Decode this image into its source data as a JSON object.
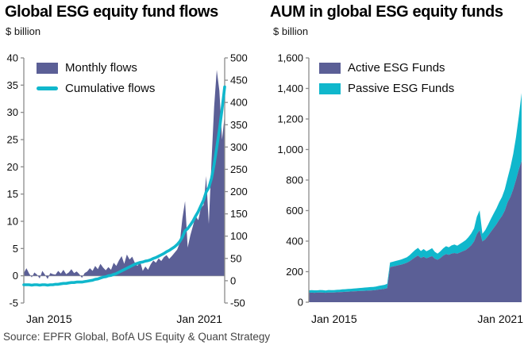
{
  "page": {
    "source_note": "Source: EPFR Global, BofA US Equity & Quant Strategy"
  },
  "colors": {
    "purple": "#5b5f96",
    "cyan": "#10b7cc",
    "axis_line": "#8c8c8c",
    "zero_line": "#9b9b9b",
    "tick_text": "#0c0c0c",
    "source_text": "#454545"
  },
  "chart_data": [
    {
      "id": "flows",
      "type": "area",
      "title": "Global ESG equity fund flows",
      "ylabel": "$ billion",
      "x_start": "Jan 2015",
      "x_end": "May 2021",
      "x_tick_labels": [
        "Jan 2015",
        "Jan 2021"
      ],
      "grid": false,
      "legend_position": "top-left",
      "left_axis": {
        "min": -5,
        "max": 40,
        "ticks": [
          40,
          35,
          30,
          25,
          20,
          15,
          10,
          5,
          0,
          -5
        ]
      },
      "right_axis": {
        "min": -50,
        "max": 500,
        "ticks": [
          500,
          450,
          400,
          350,
          300,
          250,
          200,
          150,
          100,
          50,
          0,
          -50
        ]
      },
      "series": [
        {
          "name": "Monthly flows",
          "type": "area",
          "axis": "left",
          "color": "#5b5f96",
          "values": [
            0.5,
            1.4,
            0.4,
            -0.3,
            0.6,
            0.2,
            -0.5,
            0.9,
            0.2,
            -0.6,
            0.5,
            0.3,
            0.2,
            0.9,
            0.4,
            1.1,
            0.3,
            0.6,
            1.2,
            0.5,
            0.8,
            0.3,
            -0.4,
            0.5,
            0.8,
            1.4,
            0.9,
            1.8,
            1.2,
            2.2,
            1.5,
            1.0,
            1.6,
            1.1,
            2.4,
            1.8,
            2.8,
            3.6,
            2.2,
            3.9,
            3.0,
            3.5,
            2.4,
            1.8,
            2.6,
            0.9,
            1.7,
            1.1,
            2.1,
            2.8,
            2.4,
            3.2,
            2.7,
            3.4,
            3.8,
            3.1,
            3.6,
            4.2,
            4.8,
            6.0,
            10.5,
            13.7,
            5.2,
            7.4,
            9.2,
            11.0,
            10.2,
            12.4,
            13.0,
            18.3,
            9.5,
            21.0,
            31.0,
            37.8,
            34.0,
            25.0,
            29.5
          ]
        },
        {
          "name": "Cumulative flows",
          "type": "line",
          "axis": "right",
          "color": "#10b7cc",
          "values": [
            -9,
            -9,
            -9,
            -10,
            -9,
            -9,
            -10,
            -9,
            -9,
            -10,
            -9,
            -9,
            -8,
            -8,
            -7,
            -6,
            -6,
            -5,
            -4,
            -4,
            -3,
            -3,
            -3,
            -2,
            -1,
            0,
            1,
            3,
            4,
            6,
            8,
            9,
            11,
            12,
            14,
            16,
            19,
            22,
            25,
            28,
            31,
            34,
            37,
            39,
            41,
            42,
            44,
            45,
            47,
            50,
            52,
            55,
            58,
            61,
            65,
            68,
            72,
            76,
            81,
            88,
            98,
            112,
            117,
            125,
            134,
            145,
            155,
            168,
            181,
            199,
            209,
            230,
            261,
            299,
            338,
            385,
            435
          ]
        }
      ]
    },
    {
      "id": "aum",
      "type": "area",
      "stacked": true,
      "title": "AUM in global ESG equity funds",
      "ylabel": "$ billion",
      "x_start": "Jan 2015",
      "x_end": "May 2021",
      "x_tick_labels": [
        "Jan 2015",
        "Jan 2021"
      ],
      "grid": false,
      "legend_position": "top-left",
      "y_axis": {
        "min": 0,
        "max": 1600,
        "ticks": [
          1600,
          1400,
          1200,
          1000,
          800,
          600,
          400,
          200,
          0
        ],
        "tick_labels": [
          "1,600",
          "1,400",
          "1,200",
          "1,000",
          "800",
          "600",
          "400",
          "200",
          "0"
        ]
      },
      "series": [
        {
          "name": "Active ESG Funds",
          "color": "#5b5f96",
          "values": [
            62,
            63,
            62,
            63,
            64,
            63,
            62,
            64,
            63,
            64,
            65,
            66,
            67,
            68,
            69,
            70,
            71,
            72,
            73,
            74,
            75,
            76,
            77,
            78,
            80,
            83,
            85,
            88,
            92,
            230,
            234,
            238,
            242,
            246,
            252,
            258,
            268,
            282,
            295,
            306,
            290,
            298,
            288,
            295,
            302,
            285,
            278,
            290,
            305,
            315,
            310,
            318,
            322,
            318,
            326,
            334,
            342,
            356,
            372,
            398,
            445,
            472,
            398,
            412,
            435,
            460,
            485,
            510,
            540,
            565,
            600,
            655,
            690,
            740,
            800,
            870,
            925
          ]
        },
        {
          "name": "Passive ESG Funds",
          "color": "#10b7cc",
          "values": [
            16,
            16,
            16,
            15,
            16,
            16,
            15,
            16,
            16,
            15,
            16,
            16,
            17,
            17,
            18,
            18,
            19,
            19,
            20,
            20,
            21,
            21,
            22,
            22,
            23,
            24,
            25,
            26,
            28,
            30,
            31,
            32,
            33,
            34,
            35,
            36,
            40,
            44,
            48,
            50,
            45,
            50,
            46,
            48,
            52,
            45,
            40,
            44,
            48,
            52,
            50,
            54,
            56,
            52,
            56,
            60,
            64,
            70,
            78,
            85,
            115,
            130,
            50,
            60,
            72,
            85,
            95,
            105,
            115,
            125,
            140,
            160,
            195,
            230,
            280,
            350,
            445
          ]
        }
      ]
    }
  ]
}
